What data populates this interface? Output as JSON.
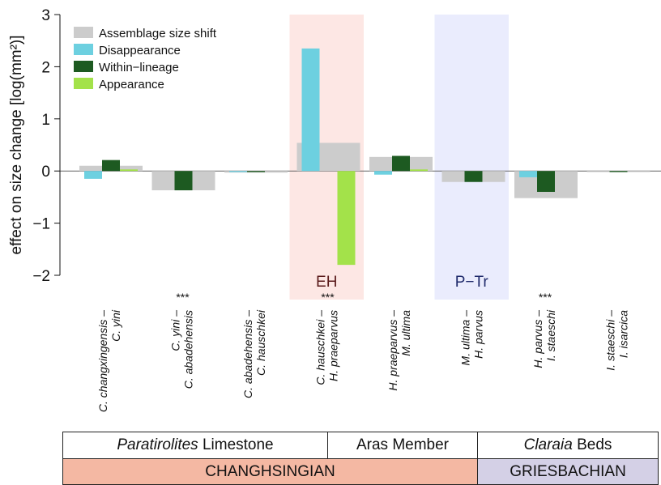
{
  "chart_data": {
    "type": "bar",
    "ylabel": "effect on size change [log(mm²)]",
    "ylim": [
      -2,
      3
    ],
    "yticks": [
      -2,
      -1,
      0,
      1,
      2,
      3
    ],
    "legend_position": "top-left",
    "categories": [
      "C. changxingensis – C. yini",
      "C. yini – C. abadehensis",
      "C. abadehensis – C. hauschkei",
      "C. hauschkei – H. praeparvus",
      "H. praeparvus – M. ultima",
      "M. ultima – H. parvus",
      "H. parvus – I. staeschi",
      "I. staeschi – I. isarcica"
    ],
    "category_labels": [
      {
        "line1": "C. changxingensis –",
        "line2": "C. yini"
      },
      {
        "line1": "C. yini –",
        "line2": "C. abadehensis"
      },
      {
        "line1": "C. abadehensis –",
        "line2": "C. hauschkei"
      },
      {
        "line1": "C. hauschkei –",
        "line2": "H. praeparvus"
      },
      {
        "line1": "H. praeparvus –",
        "line2": "M. ultima"
      },
      {
        "line1": "M. ultima –",
        "line2": "H. parvus"
      },
      {
        "line1": "H. parvus –",
        "line2": "I. staeschi"
      },
      {
        "line1": "I. staeschi –",
        "line2": "I. isarcica"
      }
    ],
    "series": [
      {
        "name": "Assemblage size shift",
        "color": "#cccccc",
        "values": [
          0.1,
          -0.37,
          -0.03,
          0.54,
          0.27,
          -0.21,
          -0.52,
          -0.02
        ]
      },
      {
        "name": "Disappearance",
        "color": "#6dd0e0",
        "values": [
          -0.15,
          0.0,
          -0.02,
          2.35,
          -0.07,
          0.0,
          -0.12,
          0.0
        ]
      },
      {
        "name": "Within−lineage",
        "color": "#1d5a21",
        "values": [
          0.21,
          -0.37,
          -0.02,
          0.0,
          0.29,
          -0.21,
          -0.4,
          -0.02
        ]
      },
      {
        "name": "Appearance",
        "color": "#a3e24a",
        "values": [
          0.03,
          0.0,
          0.0,
          -1.8,
          0.03,
          0.0,
          0.0,
          0.0
        ]
      }
    ],
    "highlights": [
      {
        "label": "EH",
        "category_index": 3,
        "color": "#fde7e4",
        "label_color": "#5a1a1a"
      },
      {
        "label": "P−Tr",
        "category_index": 5,
        "color": "#eaecfd",
        "label_color": "#1f2a6b"
      }
    ],
    "significance": [
      {
        "category_index": 1,
        "label": "***"
      },
      {
        "category_index": 3,
        "label": "***"
      },
      {
        "category_index": 6,
        "label": "***"
      }
    ]
  },
  "stratigraphy": {
    "units": [
      {
        "italic": "Paratirolites",
        "rest": " Limestone"
      },
      {
        "italic": "",
        "rest": "Aras Member"
      },
      {
        "italic": "Claraia",
        "rest": " Beds"
      }
    ],
    "stages": [
      {
        "label": "CHANGHSINGIAN",
        "color": "#f4b8a3"
      },
      {
        "label": "GRIESBACHIAN",
        "color": "#d4d0e6"
      }
    ]
  }
}
